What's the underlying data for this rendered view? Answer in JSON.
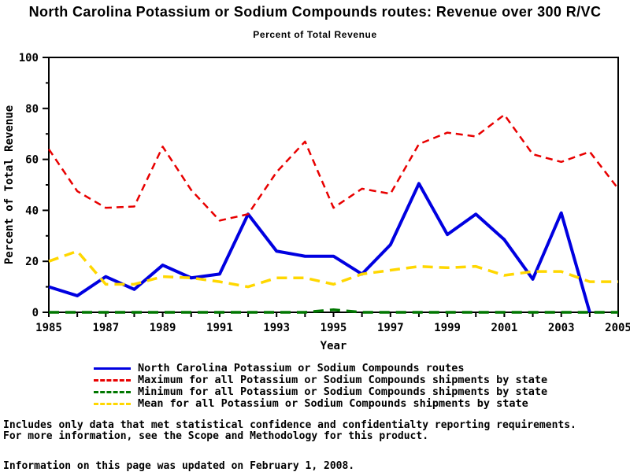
{
  "page": {
    "title": "North Carolina Potassium or Sodium Compounds routes: Revenue over 300 R/VC",
    "subtitle": "Percent of Total Revenue"
  },
  "chart_data": {
    "type": "line",
    "title": "North Carolina Potassium or Sodium Compounds routes: Revenue over 300 R/VC",
    "subtitle": "Percent of Total Revenue",
    "xlabel": "Year",
    "ylabel": "Percent of Total Revenue",
    "x": [
      1985,
      1986,
      1987,
      1988,
      1989,
      1990,
      1991,
      1992,
      1993,
      1994,
      1995,
      1996,
      1997,
      1998,
      1999,
      2000,
      2001,
      2002,
      2003,
      2004,
      2005
    ],
    "x_tick_labels": [
      1985,
      1987,
      1989,
      1991,
      1993,
      1995,
      1997,
      1999,
      2001,
      2003,
      2005
    ],
    "ylim": [
      0,
      100
    ],
    "y_ticks_major": [
      0,
      20,
      40,
      60,
      80,
      100
    ],
    "y_ticks_minor": [
      10,
      30,
      50,
      70,
      90
    ],
    "grid": false,
    "legend_position": "bottom",
    "frame": true,
    "series": [
      {
        "name": "North Carolina Potassium or Sodium Compounds routes",
        "color": "#0000e0",
        "style": "solid",
        "width": 4,
        "dash": null,
        "values": [
          10,
          6.5,
          14,
          9,
          18.5,
          13.5,
          15,
          38.5,
          24,
          22,
          22,
          15,
          26.5,
          50.5,
          30.5,
          38.5,
          28.5,
          13,
          39,
          0,
          null
        ]
      },
      {
        "name": "Maximum for all Potassium or Sodium Compounds shipments by state",
        "color": "#e80000",
        "style": "dashed",
        "width": 2.5,
        "dash": "9 6",
        "values": [
          64,
          47.5,
          41,
          41.5,
          65,
          48,
          36,
          38.5,
          55,
          67,
          41,
          48.5,
          46.5,
          66,
          70.5,
          69,
          77.5,
          62,
          59,
          63,
          48.5
        ]
      },
      {
        "name": "Minimum for all Potassium or Sodium Compounds shipments by state",
        "color": "#007700",
        "style": "dashed",
        "width": 3.5,
        "dash": "13 8",
        "values": [
          0,
          0,
          0,
          0,
          0,
          0,
          0,
          0,
          0,
          0,
          1,
          0,
          0,
          0,
          0,
          0,
          0,
          0,
          0,
          0,
          0
        ]
      },
      {
        "name": "Mean for all Potassium or Sodium Compounds shipments by state",
        "color": "#ffd700",
        "style": "dashed",
        "width": 3.5,
        "dash": "13 8",
        "values": [
          20,
          24,
          11,
          11,
          14,
          13.5,
          12,
          10,
          13.5,
          13.5,
          11,
          15,
          16.5,
          18,
          17.5,
          18,
          14.5,
          16,
          16,
          12,
          12
        ]
      }
    ]
  },
  "footnotes": {
    "line1": "Includes only data that met statistical confidence and confidentialty reporting requirements.",
    "line2": "For more information, see the Scope and Methodology for this product.",
    "updated": "Information on this page was updated on February 1, 2008."
  }
}
